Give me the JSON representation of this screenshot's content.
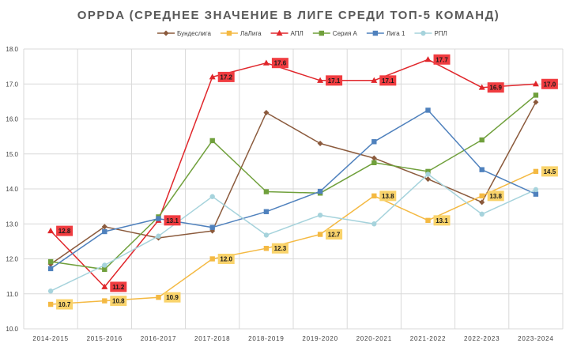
{
  "chart_data": {
    "type": "line",
    "title": "OPPDA (СРЕДНЕЕ ЗНАЧЕНИЕ В ЛИГЕ СРЕДИ ТОП-5 КОМАНД)",
    "xlabel": "",
    "ylabel": "",
    "ylim": [
      10.0,
      18.0
    ],
    "ytick_step": 1.0,
    "yticks": [
      "10.0",
      "11.0",
      "12.0",
      "13.0",
      "14.0",
      "15.0",
      "16.0",
      "17.0",
      "18.0"
    ],
    "grid": true,
    "legend_position": "top",
    "categories": [
      "2014-2015",
      "2015-2016",
      "2016-2017",
      "2017-2018",
      "2018-2019",
      "2019-2020",
      "2020-2021",
      "2021-2022",
      "2022-2023",
      "2023-2024"
    ],
    "series": [
      {
        "name": "Бундеслига",
        "color": "#8B5A3C",
        "marker": "diamond",
        "values": [
          11.85,
          12.92,
          12.6,
          12.8,
          16.18,
          15.3,
          14.88,
          14.28,
          13.62,
          16.48
        ]
      },
      {
        "name": "ЛаЛига",
        "color": "#F4B942",
        "marker": "square",
        "values": [
          10.7,
          10.8,
          10.9,
          12.0,
          12.3,
          12.7,
          13.8,
          13.1,
          13.8,
          14.5
        ],
        "labels": [
          "10.7",
          "10.8",
          "10.9",
          "12.0",
          "12.3",
          "12.7",
          "13.8",
          "13.1",
          "13.8",
          "14.5"
        ],
        "label_bg": "#F9D36B"
      },
      {
        "name": "АПЛ",
        "color": "#E0262B",
        "marker": "triangle",
        "values": [
          12.8,
          11.2,
          13.1,
          17.2,
          17.6,
          17.1,
          17.1,
          17.7,
          16.9,
          17.0
        ],
        "labels": [
          "12.8",
          "11.2",
          "13.1",
          "17.2",
          "17.6",
          "17.1",
          "17.1",
          "17.7",
          "16.9",
          "17.0"
        ],
        "label_bg": "#F03C40"
      },
      {
        "name": "Серия А",
        "color": "#70A03C",
        "marker": "square",
        "values": [
          11.92,
          11.7,
          13.2,
          15.38,
          13.92,
          13.88,
          14.75,
          14.5,
          15.4,
          16.68
        ]
      },
      {
        "name": "Лига 1",
        "color": "#4F81BD",
        "marker": "square",
        "values": [
          11.72,
          12.78,
          13.15,
          12.9,
          13.35,
          13.93,
          15.35,
          16.25,
          14.55,
          13.85
        ]
      },
      {
        "name": "РПЛ",
        "color": "#A6D3DC",
        "marker": "circle",
        "values": [
          11.08,
          11.82,
          12.65,
          13.78,
          12.68,
          13.25,
          13.0,
          14.42,
          13.28,
          13.98
        ]
      }
    ]
  }
}
